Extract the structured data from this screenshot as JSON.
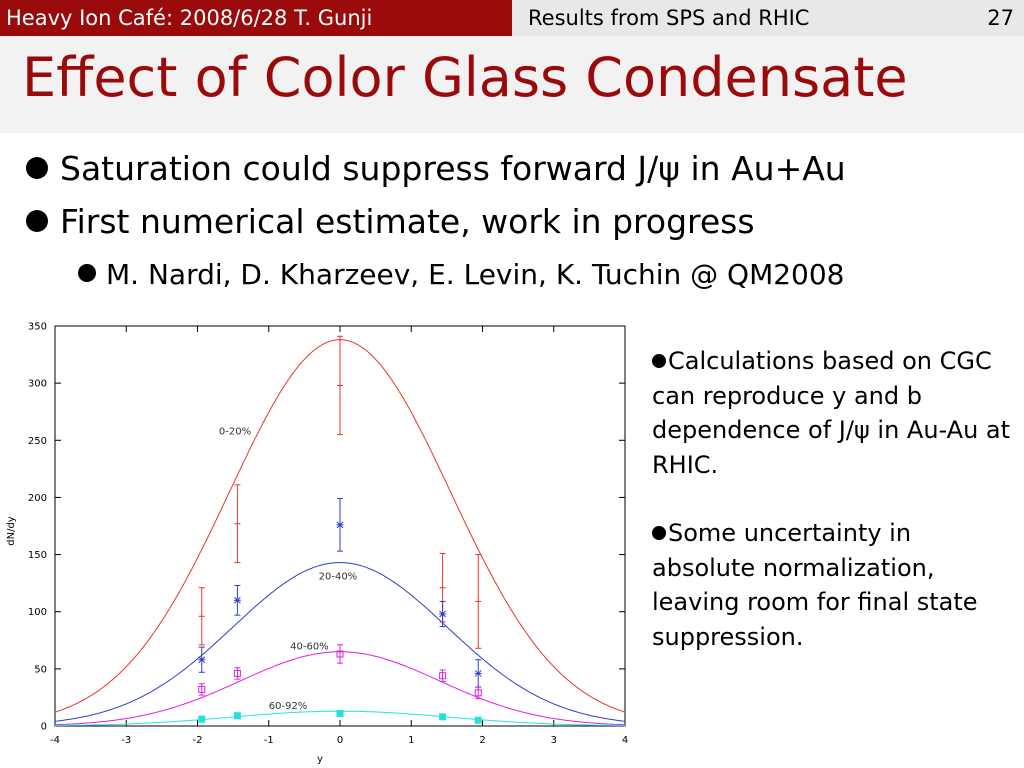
{
  "header": {
    "left": "Heavy Ion Café: 2008/6/28 T. Gunji",
    "section": "Results from SPS and RHIC",
    "page_number": "27"
  },
  "title": "Effect of Color Glass Condensate",
  "bullets": [
    {
      "text": "Saturation could suppress forward J/ψ in Au+Au",
      "level": 1
    },
    {
      "text": "First numerical estimate, work in progress",
      "level": 1
    },
    {
      "text": "M. Nardi, D. Kharzeev, E. Levin, K. Tuchin @ QM2008",
      "level": 2
    }
  ],
  "side_notes": [
    "Calculations based on CGC can reproduce y and b dependence of J/ψ in Au-Au at RHIC.",
    "Some uncertainty in absolute normalization, leaving room for final state suppression."
  ],
  "colors": {
    "header_red": "#9a0a0a",
    "c0": "#e8352a",
    "c1": "#2f3bd0",
    "c2": "#e020e0",
    "c3": "#22e0e0"
  },
  "chart_data": {
    "type": "line",
    "xlabel": "y",
    "ylabel": "dN/dy",
    "xlim": [
      -4,
      4
    ],
    "ylim": [
      0,
      350
    ],
    "xticks": [
      "-4",
      "-3",
      "-2",
      "-1",
      "0",
      "1",
      "2",
      "3",
      "4"
    ],
    "yticks": [
      "0",
      "50",
      "100",
      "150",
      "200",
      "250",
      "300",
      "350"
    ],
    "grid": false,
    "series": [
      {
        "name": "0-20%",
        "color": "#e8352a",
        "peak": 338,
        "sigma": 1.55,
        "label_x": -1.7,
        "label_y": 255,
        "points": [
          {
            "x": -1.94,
            "y": 96,
            "err": 25
          },
          {
            "x": -1.44,
            "y": 177,
            "err": 34
          },
          {
            "x": 0.0,
            "y": 298,
            "err": 43
          },
          {
            "x": 1.44,
            "y": 121,
            "err": 30
          },
          {
            "x": 1.94,
            "y": 109,
            "err": 41
          }
        ],
        "marker": "plus"
      },
      {
        "name": "20-40%",
        "color": "#2f3bd0",
        "peak": 143,
        "sigma": 1.5,
        "label_x": -0.3,
        "label_y": 128,
        "points": [
          {
            "x": -1.94,
            "y": 58,
            "err": 11
          },
          {
            "x": -1.44,
            "y": 110,
            "err": 13
          },
          {
            "x": 0.0,
            "y": 176,
            "err": 23
          },
          {
            "x": 1.44,
            "y": 98,
            "err": 11
          },
          {
            "x": 1.94,
            "y": 46,
            "err": 12
          }
        ],
        "marker": "star"
      },
      {
        "name": "40-60%",
        "color": "#e020e0",
        "peak": 65,
        "sigma": 1.4,
        "label_x": -0.7,
        "label_y": 67,
        "points": [
          {
            "x": -1.94,
            "y": 32,
            "err": 5
          },
          {
            "x": -1.44,
            "y": 46,
            "err": 5
          },
          {
            "x": 0.0,
            "y": 63,
            "err": 8
          },
          {
            "x": 1.44,
            "y": 44,
            "err": 5
          },
          {
            "x": 1.94,
            "y": 29,
            "err": 5
          }
        ],
        "marker": "square"
      },
      {
        "name": "60-92%",
        "color": "#22e0e0",
        "peak": 13,
        "sigma": 1.5,
        "label_x": -1.0,
        "label_y": 15,
        "points": [
          {
            "x": -1.94,
            "y": 6,
            "err": 0
          },
          {
            "x": -1.44,
            "y": 9,
            "err": 0
          },
          {
            "x": 0.0,
            "y": 11,
            "err": 0
          },
          {
            "x": 1.44,
            "y": 8,
            "err": 0
          },
          {
            "x": 1.94,
            "y": 5,
            "err": 0
          }
        ],
        "marker": "filled-square"
      }
    ]
  }
}
